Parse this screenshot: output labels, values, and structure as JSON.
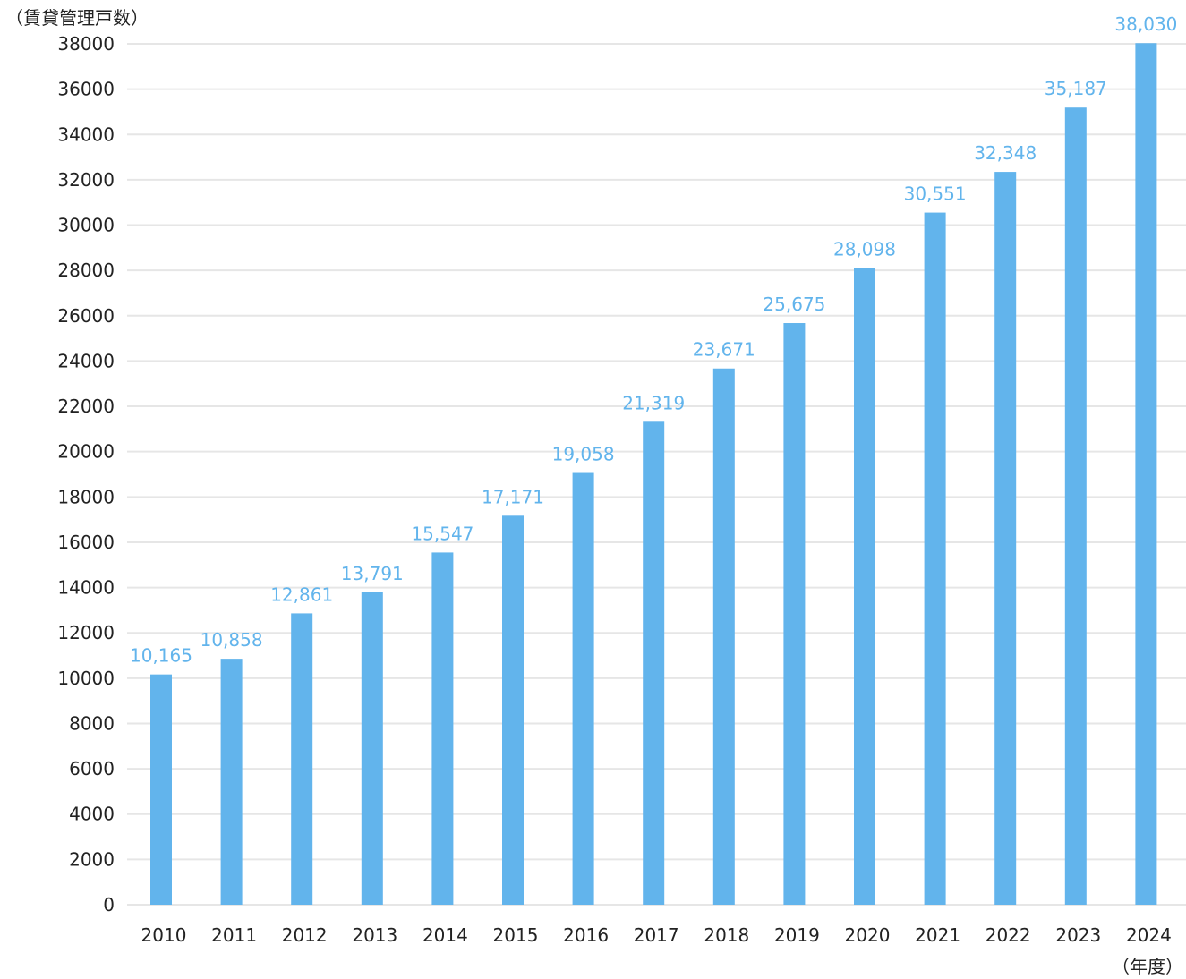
{
  "chart_data": {
    "type": "bar",
    "ylabel": "（賃貸管理戸数）",
    "xlabel": "（年度）",
    "categories": [
      "2010",
      "2011",
      "2012",
      "2013",
      "2014",
      "2015",
      "2016",
      "2017",
      "2018",
      "2019",
      "2020",
      "2021",
      "2022",
      "2023",
      "2024"
    ],
    "values": [
      10165,
      10858,
      12861,
      13791,
      15547,
      17171,
      19058,
      21319,
      23671,
      25675,
      28098,
      30551,
      32348,
      35187,
      38030
    ],
    "value_labels": [
      "10,165",
      "10,858",
      "12,861",
      "13,791",
      "15,547",
      "17,171",
      "19,058",
      "21,319",
      "23,671",
      "25,675",
      "28,098",
      "30,551",
      "32,348",
      "35,187",
      "38,030"
    ],
    "y_ticks": [
      "0",
      "2000",
      "4000",
      "6000",
      "8000",
      "10000",
      "12000",
      "14000",
      "16000",
      "18000",
      "20000",
      "22000",
      "24000",
      "26000",
      "28000",
      "30000",
      "32000",
      "34000",
      "36000",
      "38000"
    ],
    "ylim": [
      0,
      38000
    ],
    "grid": true,
    "legend": "none",
    "colors": {
      "bar": "#62b4ec",
      "label": "#62b4ec",
      "grid": "#e6e6e6",
      "text": "#222222"
    }
  }
}
